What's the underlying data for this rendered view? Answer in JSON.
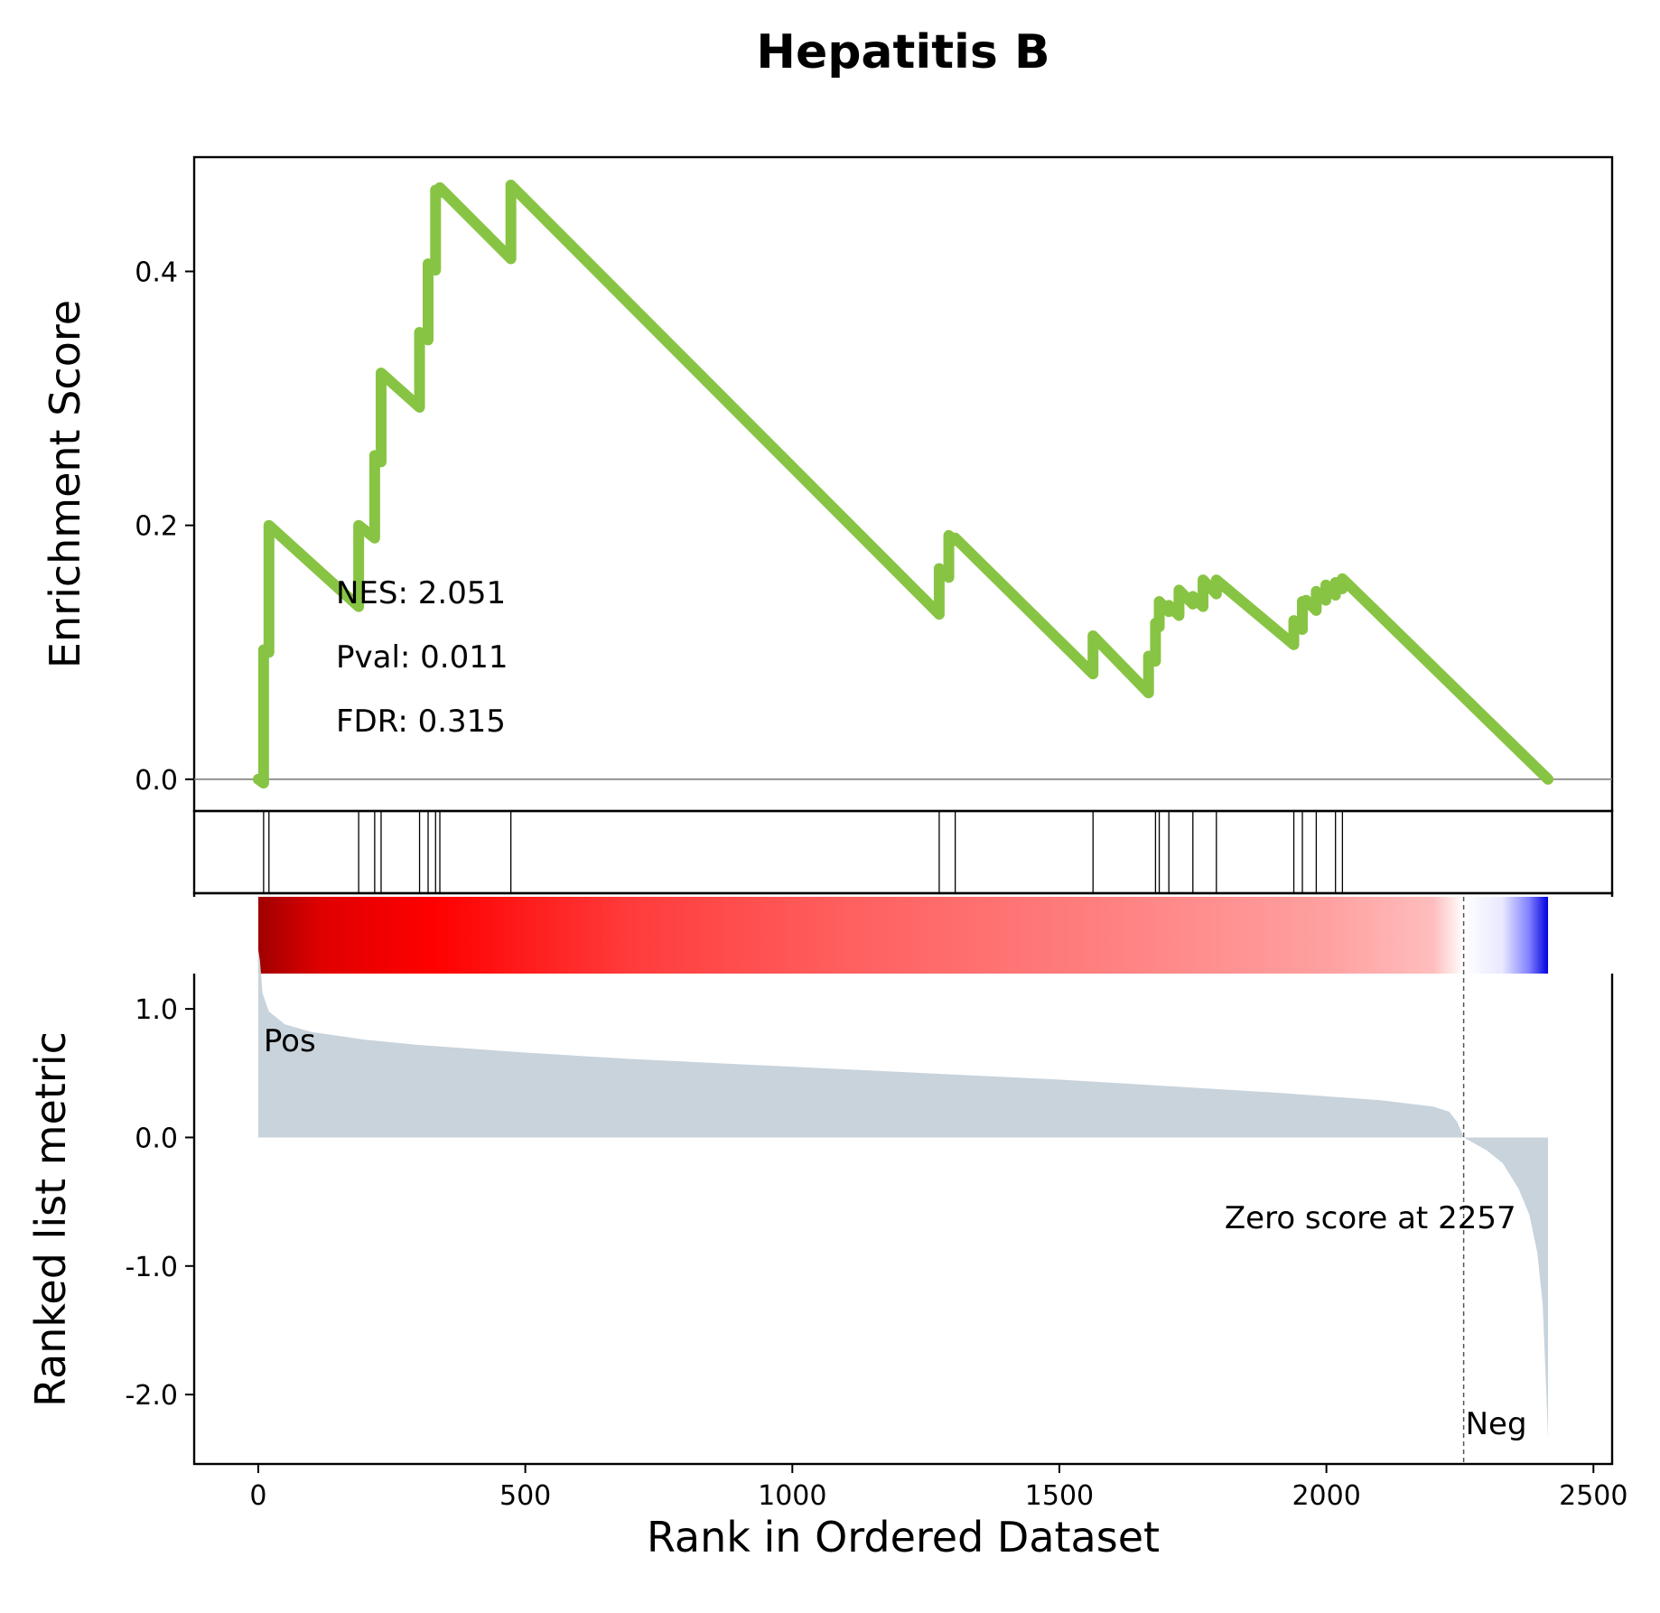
{
  "chart_data": {
    "type": "line",
    "title": "Hepatitis B",
    "xlabel": "Rank in Ordered Dataset",
    "xlim": [
      -120,
      2535
    ],
    "x_ticks": [
      0,
      500,
      1000,
      1500,
      2000,
      2500
    ],
    "x_tick_labels": [
      "0",
      "500",
      "1000",
      "1500",
      "2000",
      "2500"
    ],
    "es_panel": {
      "ylabel": "Enrichment Score",
      "ylim": [
        -0.025,
        0.49
      ],
      "y_ticks": [
        0.0,
        0.2,
        0.4
      ],
      "y_tick_labels": [
        "0.0",
        "0.2",
        "0.4"
      ],
      "line_color": "#88c444",
      "x": [
        0,
        10,
        10,
        20,
        20,
        188,
        188,
        218,
        218,
        230,
        230,
        302,
        302,
        318,
        318,
        332,
        332,
        340,
        340,
        473,
        473,
        1275,
        1275,
        1293,
        1293,
        1305,
        1305,
        1563,
        1563,
        1667,
        1667,
        1680,
        1680,
        1687,
        1687,
        1705,
        1705,
        1724,
        1724,
        1750,
        1750,
        1769,
        1769,
        1794,
        1794,
        1939,
        1939,
        1955,
        1955,
        1962,
        1962,
        1981,
        1981,
        1999,
        1999,
        2017,
        2017,
        2030,
        2030,
        2415
      ],
      "y": [
        0.0,
        -0.003,
        0.102,
        0.1,
        0.2,
        0.136,
        0.2,
        0.19,
        0.255,
        0.25,
        0.32,
        0.293,
        0.352,
        0.346,
        0.406,
        0.401,
        0.464,
        0.462,
        0.466,
        0.41,
        0.468,
        0.13,
        0.166,
        0.159,
        0.192,
        0.188,
        0.19,
        0.083,
        0.113,
        0.068,
        0.097,
        0.093,
        0.123,
        0.12,
        0.14,
        0.132,
        0.137,
        0.129,
        0.149,
        0.138,
        0.144,
        0.136,
        0.157,
        0.146,
        0.157,
        0.106,
        0.125,
        0.118,
        0.14,
        0.137,
        0.141,
        0.133,
        0.148,
        0.141,
        0.153,
        0.145,
        0.155,
        0.15,
        0.158,
        0.0
      ],
      "annotations": [
        "NES: 2.051",
        "Pval: 0.011",
        "FDR: 0.315"
      ]
    },
    "hits_panel": {
      "hits": [
        10,
        20,
        188,
        218,
        230,
        302,
        318,
        332,
        340,
        473,
        1275,
        1305,
        1563,
        1680,
        1687,
        1705,
        1750,
        1794,
        1939,
        1955,
        1981,
        2017,
        2030
      ]
    },
    "color_bar": {
      "range": [
        0,
        2415
      ],
      "stops": [
        {
          "x": 0,
          "color": "#a00000"
        },
        {
          "x": 120,
          "color": "#e00000"
        },
        {
          "x": 330,
          "color": "#ff0000"
        },
        {
          "x": 700,
          "color": "#ff3c3c"
        },
        {
          "x": 1100,
          "color": "#ff5f5f"
        },
        {
          "x": 1600,
          "color": "#ff8181"
        },
        {
          "x": 2000,
          "color": "#ffa0a0"
        },
        {
          "x": 2200,
          "color": "#ffbdbd"
        },
        {
          "x": 2257,
          "color": "#ffffff"
        },
        {
          "x": 2330,
          "color": "#e8e8ff"
        },
        {
          "x": 2380,
          "color": "#8080ff"
        },
        {
          "x": 2415,
          "color": "#0000e0"
        }
      ]
    },
    "ranked_panel": {
      "ylabel": "Ranked list metric",
      "ylim": [
        -2.54,
        1.9
      ],
      "y_ticks": [
        1.0,
        0.0,
        -1.0,
        -2.0
      ],
      "y_tick_labels": [
        "1.0",
        "0.0",
        "-1.0",
        "-2.0"
      ],
      "fill_color": "#c8d3dc",
      "x": [
        0,
        3,
        8,
        20,
        50,
        100,
        200,
        300,
        400,
        500,
        700,
        900,
        1100,
        1300,
        1500,
        1700,
        1900,
        2100,
        2200,
        2230,
        2245,
        2257,
        2270,
        2300,
        2330,
        2360,
        2380,
        2395,
        2405,
        2411,
        2415
      ],
      "y": [
        1.46,
        1.38,
        1.12,
        0.98,
        0.88,
        0.82,
        0.76,
        0.72,
        0.69,
        0.66,
        0.61,
        0.57,
        0.53,
        0.49,
        0.45,
        0.4,
        0.35,
        0.29,
        0.24,
        0.2,
        0.12,
        0.0,
        -0.03,
        -0.1,
        -0.2,
        -0.4,
        -0.6,
        -0.9,
        -1.3,
        -1.9,
        -2.35
      ],
      "zero_score_rank": 2257,
      "zero_score_label": "Zero score at 2257",
      "pos_label": "Pos",
      "neg_label": "Neg",
      "pos_color": "#ff0000",
      "neg_color": "#0000ff"
    }
  }
}
